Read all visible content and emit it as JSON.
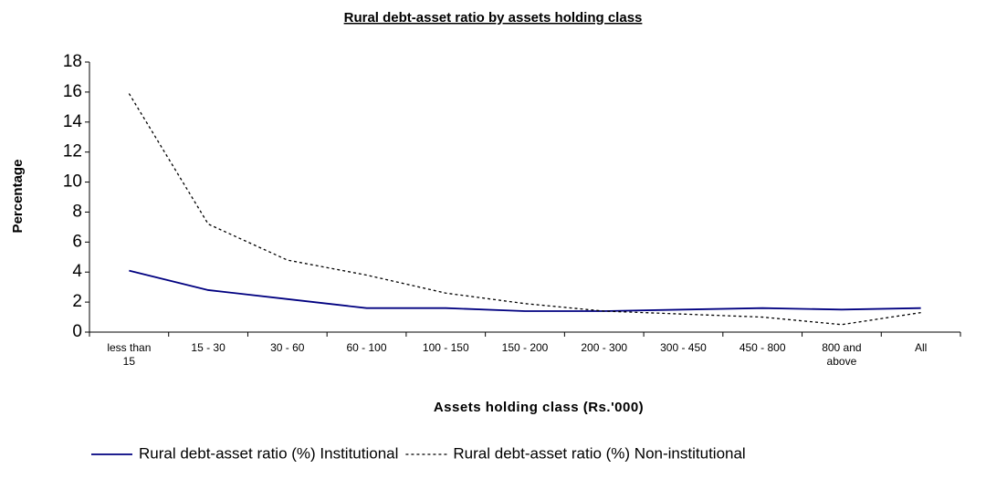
{
  "chart_data": {
    "type": "line",
    "title": "Rural debt-asset ratio by assets holding class",
    "x_label": "Assets holding class (Rs.'000)",
    "y_label": "Percentage",
    "categories": [
      "less than 15",
      "15 - 30",
      "30 - 60",
      "60 - 100",
      "100 - 150",
      "150 - 200",
      "200 - 300",
      "300 - 450",
      "450 - 800",
      "800 and above",
      "All"
    ],
    "series": [
      {
        "name": "Rural debt-asset ratio (%) Institutional",
        "color": "#000080",
        "dash": false,
        "values": [
          4.1,
          2.8,
          2.2,
          1.6,
          1.6,
          1.4,
          1.4,
          1.5,
          1.6,
          1.5,
          1.6
        ]
      },
      {
        "name": "Rural debt-asset ratio (%) Non-institutional",
        "color": "#000000",
        "dash": true,
        "values": [
          15.9,
          7.2,
          4.8,
          3.8,
          2.6,
          1.9,
          1.4,
          1.2,
          1.0,
          0.5,
          1.3
        ]
      }
    ],
    "ylim": [
      0,
      18
    ],
    "yticks": [
      0,
      2,
      4,
      6,
      8,
      10,
      12,
      14,
      16,
      18
    ],
    "grid": false,
    "legend": "bottom"
  }
}
